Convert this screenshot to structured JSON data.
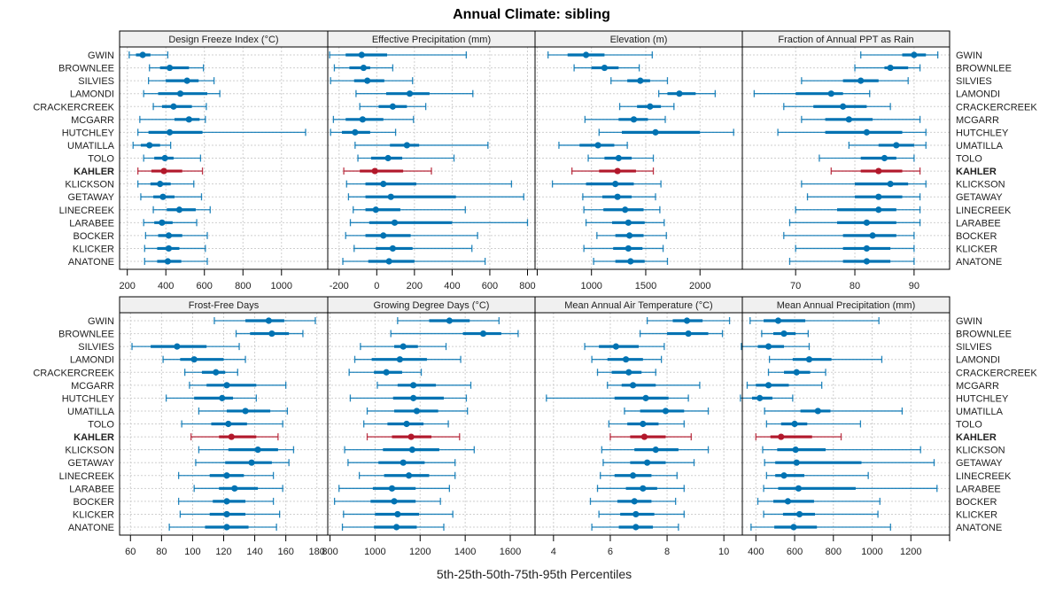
{
  "chart_data": {
    "type": "dotplot-percentile-intervals",
    "title": "Annual Climate: sibling",
    "xlabel": "5th-25th-50th-75th-95th Percentiles",
    "ylabel": "",
    "grid": true,
    "highlight_site": "KAHLER",
    "colors": {
      "default": "#0072b2",
      "highlight": "#b2182b"
    },
    "sites": [
      "GWIN",
      "BROWNLEE",
      "SILVIES",
      "LAMONDI",
      "CRACKERCREEK",
      "MCGARR",
      "HUTCHLEY",
      "UMATILLA",
      "TOLO",
      "KAHLER",
      "KLICKSON",
      "GETAWAY",
      "LINECREEK",
      "LARABEE",
      "BOCKER",
      "KLICKER",
      "ANATONE"
    ],
    "percentiles": [
      "5th",
      "25th",
      "50th",
      "75th",
      "95th"
    ],
    "panels": [
      {
        "title": "Design Freeze Index (°C)",
        "xlim": [
          160,
          1240
        ],
        "ticks": [
          200,
          400,
          600,
          800,
          1000
        ],
        "values": [
          [
            210,
            245,
            280,
            320,
            410
          ],
          [
            315,
            370,
            420,
            520,
            595
          ],
          [
            310,
            400,
            510,
            570,
            650
          ],
          [
            285,
            360,
            475,
            615,
            680
          ],
          [
            335,
            380,
            440,
            535,
            610
          ],
          [
            265,
            445,
            520,
            575,
            605
          ],
          [
            255,
            310,
            420,
            590,
            1125
          ],
          [
            230,
            270,
            315,
            370,
            425
          ],
          [
            285,
            340,
            395,
            440,
            580
          ],
          [
            255,
            325,
            390,
            485,
            590
          ],
          [
            255,
            320,
            370,
            425,
            545
          ],
          [
            270,
            335,
            385,
            445,
            585
          ],
          [
            335,
            405,
            470,
            555,
            630
          ],
          [
            285,
            340,
            380,
            435,
            560
          ],
          [
            295,
            360,
            415,
            485,
            615
          ],
          [
            290,
            355,
            415,
            470,
            605
          ],
          [
            290,
            355,
            410,
            480,
            615
          ]
        ]
      },
      {
        "title": "Effective Precipitation (mm)",
        "xlim": [
          -260,
          840
        ],
        "ticks": [
          -200,
          0,
          200,
          400,
          600,
          800
        ],
        "values": [
          [
            -250,
            -165,
            -80,
            55,
            475
          ],
          [
            -225,
            -145,
            -70,
            -35,
            85
          ],
          [
            -245,
            -120,
            -50,
            40,
            190
          ],
          [
            -110,
            50,
            175,
            280,
            510
          ],
          [
            -90,
            10,
            85,
            160,
            260
          ],
          [
            -230,
            -165,
            -75,
            35,
            195
          ],
          [
            -245,
            -185,
            -115,
            -35,
            100
          ],
          [
            -115,
            70,
            160,
            225,
            590
          ],
          [
            -100,
            -30,
            60,
            135,
            410
          ],
          [
            -175,
            -90,
            -10,
            140,
            290
          ],
          [
            -160,
            -60,
            35,
            210,
            715
          ],
          [
            -150,
            -60,
            75,
            420,
            780
          ],
          [
            -125,
            -60,
            -5,
            125,
            470
          ],
          [
            -140,
            -40,
            95,
            400,
            800
          ],
          [
            -165,
            -60,
            35,
            180,
            535
          ],
          [
            -120,
            -5,
            85,
            190,
            505
          ],
          [
            -180,
            -45,
            65,
            200,
            575
          ]
        ]
      },
      {
        "title": "Elevation (m)",
        "xlim": [
          480,
          2390
        ],
        "ticks": [
          500,
          1000,
          1500,
          2000
        ],
        "tick_labels": [
          "",
          "1000",
          "1500",
          "2000"
        ],
        "values": [
          [
            600,
            780,
            950,
            1120,
            1560
          ],
          [
            840,
            1000,
            1120,
            1250,
            1440
          ],
          [
            1180,
            1330,
            1450,
            1540,
            1700
          ],
          [
            1620,
            1700,
            1810,
            1960,
            2140
          ],
          [
            1260,
            1420,
            1540,
            1640,
            1760
          ],
          [
            940,
            1250,
            1390,
            1520,
            1680
          ],
          [
            1070,
            1280,
            1590,
            2000,
            2310
          ],
          [
            700,
            890,
            1060,
            1210,
            1330
          ],
          [
            970,
            1120,
            1250,
            1370,
            1570
          ],
          [
            820,
            1070,
            1240,
            1410,
            1570
          ],
          [
            640,
            950,
            1220,
            1390,
            1640
          ],
          [
            920,
            1100,
            1240,
            1370,
            1590
          ],
          [
            930,
            1110,
            1310,
            1480,
            1630
          ],
          [
            950,
            1190,
            1340,
            1490,
            1670
          ],
          [
            1050,
            1220,
            1350,
            1480,
            1690
          ],
          [
            930,
            1200,
            1340,
            1470,
            1660
          ],
          [
            1020,
            1220,
            1360,
            1490,
            1700
          ]
        ]
      },
      {
        "title": "Fraction of Annual PPT as Rain",
        "xlim": [
          61,
          96
        ],
        "ticks": [
          70,
          80,
          90
        ],
        "values": [
          [
            81,
            88,
            90,
            92,
            94
          ],
          [
            80,
            85,
            86,
            89,
            91
          ],
          [
            71,
            78,
            81,
            84,
            89
          ],
          [
            63,
            70,
            76,
            78,
            82.5
          ],
          [
            68,
            73,
            78,
            82,
            86
          ],
          [
            71,
            75,
            79,
            83,
            91
          ],
          [
            67,
            75,
            82,
            88,
            92
          ],
          [
            79,
            84,
            87,
            90,
            92
          ],
          [
            74,
            81,
            85,
            87,
            90
          ],
          [
            76,
            81,
            84,
            88,
            91
          ],
          [
            71,
            80,
            86,
            89,
            92
          ],
          [
            72,
            80,
            84,
            88,
            91
          ],
          [
            70,
            77,
            84,
            87,
            91
          ],
          [
            69,
            77,
            82,
            87,
            91
          ],
          [
            68,
            78,
            83,
            87,
            90
          ],
          [
            70,
            78,
            82,
            86,
            90
          ],
          [
            69,
            78,
            82,
            86,
            90
          ]
        ]
      },
      {
        "title": "Frost-Free Days",
        "xlim": [
          53,
          187
        ],
        "ticks": [
          60,
          80,
          100,
          120,
          140,
          160,
          180
        ],
        "values": [
          [
            114,
            134,
            149,
            159,
            179
          ],
          [
            128,
            137,
            151,
            162,
            171
          ],
          [
            61,
            73,
            90,
            109,
            130
          ],
          [
            81,
            92,
            101,
            120,
            134
          ],
          [
            95,
            106,
            115,
            121,
            129
          ],
          [
            98,
            109,
            122,
            141,
            160
          ],
          [
            83,
            101,
            119,
            126,
            141
          ],
          [
            104,
            122,
            134,
            150,
            161
          ],
          [
            93,
            112,
            123,
            135,
            158
          ],
          [
            99,
            117,
            125,
            141,
            155
          ],
          [
            104,
            123,
            142,
            155,
            165
          ],
          [
            102,
            121,
            138,
            151,
            162
          ],
          [
            91,
            111,
            122,
            133,
            152
          ],
          [
            101,
            117,
            127,
            142,
            158
          ],
          [
            91,
            113,
            122,
            134,
            152
          ],
          [
            92,
            111,
            122,
            134,
            156
          ],
          [
            85,
            108,
            122,
            136,
            154
          ]
        ]
      },
      {
        "title": "Growing Degree Days (°C)",
        "xlim": [
          790,
          1710
        ],
        "ticks": [
          800,
          1000,
          1200,
          1400,
          1600
        ],
        "values": [
          [
            1100,
            1240,
            1330,
            1420,
            1550
          ],
          [
            1070,
            1390,
            1480,
            1560,
            1635
          ],
          [
            935,
            1085,
            1125,
            1190,
            1315
          ],
          [
            910,
            985,
            1110,
            1230,
            1380
          ],
          [
            885,
            995,
            1050,
            1120,
            1205
          ],
          [
            1010,
            1100,
            1170,
            1270,
            1425
          ],
          [
            890,
            1080,
            1170,
            1305,
            1405
          ],
          [
            965,
            1085,
            1185,
            1280,
            1410
          ],
          [
            950,
            1055,
            1140,
            1215,
            1325
          ],
          [
            965,
            1075,
            1160,
            1250,
            1375
          ],
          [
            865,
            1035,
            1165,
            1285,
            1440
          ],
          [
            880,
            1015,
            1125,
            1220,
            1355
          ],
          [
            930,
            1040,
            1150,
            1240,
            1355
          ],
          [
            840,
            990,
            1075,
            1180,
            1330
          ],
          [
            820,
            980,
            1085,
            1180,
            1290
          ],
          [
            860,
            1000,
            1100,
            1195,
            1345
          ],
          [
            855,
            995,
            1095,
            1185,
            1305
          ]
        ]
      },
      {
        "title": "Mean Annual Air Temperature (°C)",
        "xlim": [
          3.35,
          10.65
        ],
        "ticks": [
          4,
          6,
          8,
          10
        ],
        "values": [
          [
            7.3,
            8.2,
            8.7,
            9.25,
            10.2
          ],
          [
            7.05,
            8.0,
            8.75,
            9.45,
            9.95
          ],
          [
            5.1,
            5.6,
            6.2,
            7.0,
            7.9
          ],
          [
            5.35,
            5.9,
            6.55,
            7.15,
            7.8
          ],
          [
            5.55,
            6.05,
            6.65,
            7.1,
            7.6
          ],
          [
            5.9,
            6.4,
            6.8,
            7.6,
            9.15
          ],
          [
            3.75,
            6.15,
            7.25,
            8.05,
            8.75
          ],
          [
            6.5,
            7.05,
            7.95,
            8.6,
            9.45
          ],
          [
            5.95,
            6.6,
            7.15,
            7.7,
            8.6
          ],
          [
            6.0,
            6.7,
            7.2,
            7.95,
            8.85
          ],
          [
            5.7,
            6.85,
            7.6,
            8.4,
            9.45
          ],
          [
            5.75,
            6.7,
            7.3,
            7.95,
            8.95
          ],
          [
            5.65,
            6.15,
            6.8,
            7.45,
            8.35
          ],
          [
            5.55,
            6.55,
            7.15,
            7.65,
            8.6
          ],
          [
            5.3,
            6.25,
            6.85,
            7.45,
            8.3
          ],
          [
            5.6,
            6.35,
            6.9,
            7.55,
            8.6
          ],
          [
            5.35,
            6.3,
            6.9,
            7.5,
            8.4
          ]
        ]
      },
      {
        "title": "Mean Annual Precipitation (mm)",
        "xlim": [
          330,
          1400
        ],
        "ticks": [
          400,
          600,
          800,
          1000,
          1200,
          1400
        ],
        "tick_labels": [
          "400",
          "600",
          "800",
          "1000",
          "1200",
          ""
        ],
        "values": [
          [
            370,
            440,
            515,
            655,
            1035
          ],
          [
            430,
            490,
            545,
            605,
            670
          ],
          [
            325,
            410,
            465,
            545,
            675
          ],
          [
            470,
            590,
            675,
            790,
            1050
          ],
          [
            465,
            545,
            610,
            680,
            760
          ],
          [
            355,
            400,
            465,
            570,
            740
          ],
          [
            320,
            380,
            420,
            485,
            590
          ],
          [
            445,
            630,
            720,
            785,
            1155
          ],
          [
            455,
            530,
            600,
            665,
            940
          ],
          [
            400,
            475,
            530,
            690,
            840
          ],
          [
            435,
            510,
            605,
            760,
            1250
          ],
          [
            445,
            500,
            610,
            945,
            1320
          ],
          [
            455,
            500,
            545,
            650,
            980
          ],
          [
            440,
            515,
            620,
            915,
            1335
          ],
          [
            410,
            490,
            565,
            700,
            1040
          ],
          [
            440,
            540,
            625,
            705,
            1030
          ],
          [
            375,
            495,
            595,
            715,
            1095
          ]
        ]
      }
    ]
  }
}
